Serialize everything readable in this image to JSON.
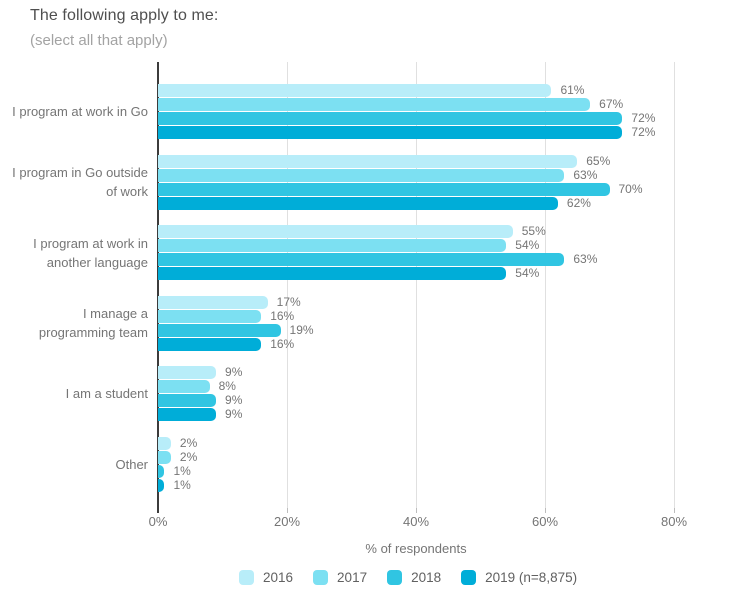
{
  "title": "The following apply to me:",
  "subtitle": "(select all that apply)",
  "chart_data": {
    "type": "bar",
    "orientation": "horizontal",
    "title": "The following apply to me:",
    "subtitle": "(select all that apply)",
    "categories": [
      "I program at work in Go",
      "I program in Go outside of work",
      "I program at work in another language",
      "I manage a programming team",
      "I am a student",
      "Other"
    ],
    "series": [
      {
        "name": "2016",
        "color": "#b8edf9",
        "values": [
          61,
          65,
          55,
          17,
          9,
          2
        ]
      },
      {
        "name": "2017",
        "color": "#7ce0f2",
        "values": [
          67,
          63,
          54,
          16,
          8,
          2
        ]
      },
      {
        "name": "2018",
        "color": "#30c5e2",
        "values": [
          72,
          70,
          63,
          19,
          9,
          1
        ]
      },
      {
        "name": "2019 (n=8,875)",
        "color": "#00add8",
        "values": [
          72,
          62,
          54,
          16,
          9,
          1
        ]
      }
    ],
    "value_suffix": "%",
    "xlabel": "% of respondents",
    "xlim": [
      0,
      80
    ],
    "xticks": [
      0,
      20,
      40,
      60,
      80
    ],
    "xtick_labels": [
      "0%",
      "20%",
      "40%",
      "60%",
      "80%"
    ],
    "grid": true,
    "legend_position": "bottom"
  },
  "colors": {
    "background": "#ffffff",
    "gridline": "#e0e0e0",
    "axis_line": "#3c3c3c",
    "category_text": "#757575",
    "value_text": "#757575",
    "tick_text": "#757575",
    "title_text": "#4f4f4f",
    "subtitle_text": "#a3a3a3",
    "legend_text": "#616161"
  }
}
